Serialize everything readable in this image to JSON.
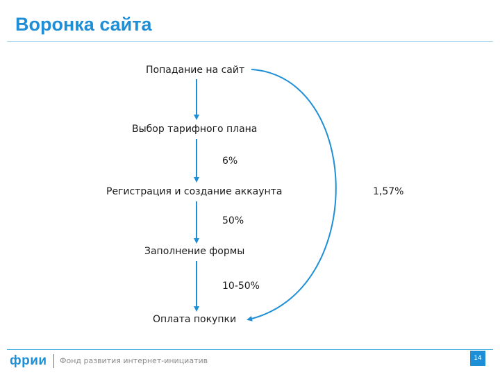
{
  "slide": {
    "title": "Воронка сайта",
    "accent_color": "#1e8fd6"
  },
  "funnel": {
    "steps": [
      "Попадание на сайт",
      "Выбор тарифного плана",
      "Регистрация и создание аккаунта",
      "Заполнение формы",
      "Оплата покупки"
    ],
    "conversions": [
      "6%",
      "50%",
      "10-50%"
    ],
    "overall_conversion": "1,57%"
  },
  "footer": {
    "logo_text": "фрии",
    "tagline": "Фонд развития интернет-инициатив",
    "page_number": "14"
  }
}
